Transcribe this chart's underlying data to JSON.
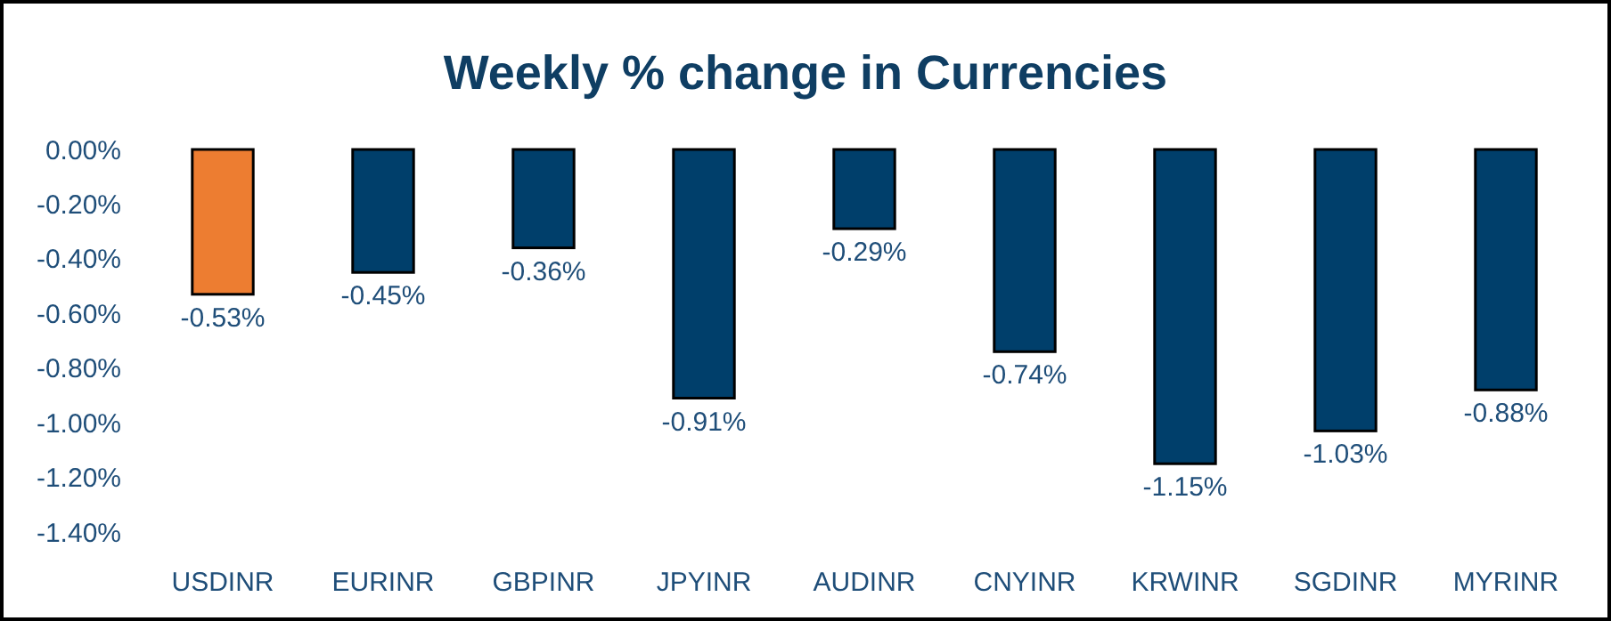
{
  "chart_data": {
    "type": "bar",
    "title": "Weekly % change in Currencies",
    "categories": [
      "USDINR",
      "EURINR",
      "GBPINR",
      "JPYINR",
      "AUDINR",
      "CNYINR",
      "KRWINR",
      "SGDINR",
      "MYRINR"
    ],
    "values": [
      -0.53,
      -0.45,
      -0.36,
      -0.91,
      -0.29,
      -0.74,
      -1.15,
      -1.03,
      -0.88
    ],
    "colors": [
      "#ed7d31",
      "#003f6b",
      "#003f6b",
      "#003f6b",
      "#003f6b",
      "#003f6b",
      "#003f6b",
      "#003f6b",
      "#003f6b"
    ],
    "value_labels": [
      "-0.53%",
      "-0.45%",
      "-0.36%",
      "-0.91%",
      "-0.29%",
      "-0.74%",
      "-1.15%",
      "-1.03%",
      "-0.88%"
    ],
    "ylim": [
      -1.4,
      0
    ],
    "yticks": [
      {
        "value": 0,
        "label": "0.00%"
      },
      {
        "value": -0.2,
        "label": "-0.20%"
      },
      {
        "value": -0.4,
        "label": "-0.40%"
      },
      {
        "value": -0.6,
        "label": "-0.60%"
      },
      {
        "value": -0.8,
        "label": "-0.80%"
      },
      {
        "value": -1,
        "label": "-1.00%"
      },
      {
        "value": -1.2,
        "label": "-1.20%"
      },
      {
        "value": -1.4,
        "label": "-1.40%"
      }
    ],
    "grid": false
  }
}
